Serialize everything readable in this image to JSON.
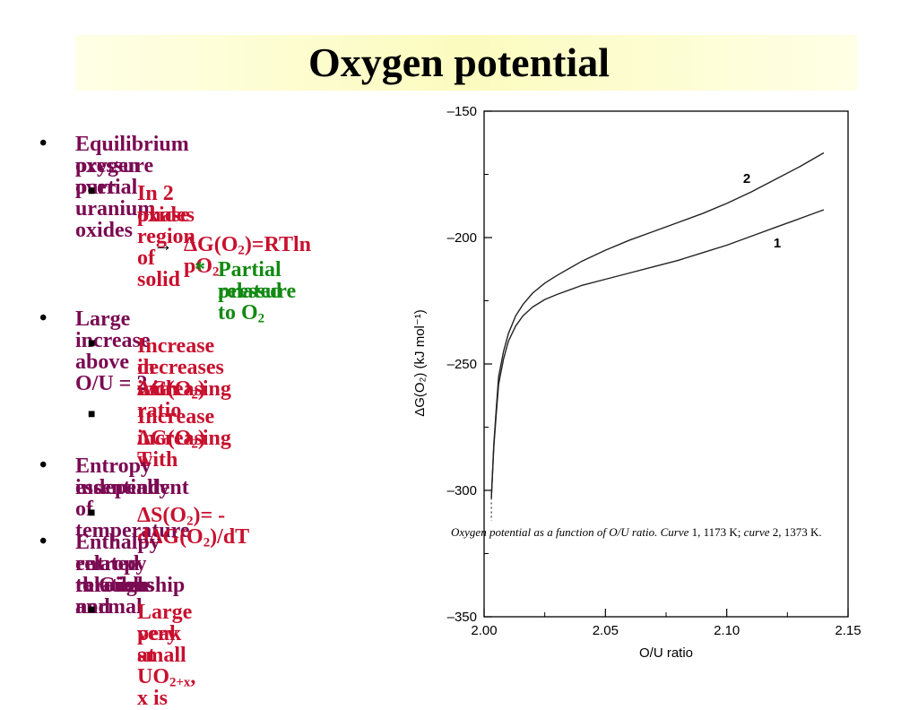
{
  "title": "Oxygen potential",
  "bullets": [
    {
      "level": 1,
      "lines": [
        "Equilibrium oxygen partial",
        "pressure over uranium oxides"
      ]
    },
    {
      "level": 2,
      "lines": [
        "In 2 phase region of solid",
        "oxides"
      ]
    },
    {
      "level": 3,
      "arrow": "→",
      "text": "ΔG(O",
      "sub": "2",
      "rest": ")=RTln pO",
      "sub2": "2"
    },
    {
      "level": 4,
      "marker": "*",
      "line1": "Partial pressure",
      "line2a": "related to O",
      "line2sub": "2"
    },
    {
      "level": 1,
      "lines": [
        "Large increase above O/U = 2"
      ]
    },
    {
      "level": 2,
      "l1a": "Increase in ΔG(O",
      "l1sub": "2",
      "l1b": ")",
      "l2": "decreases with",
      "l3": "increasing ratio"
    },
    {
      "level": 2,
      "l1a": "Increase ΔG(O",
      "l1sub": "2",
      "l1b": ") with",
      "l2": "increasing T"
    },
    {
      "level": 1,
      "lines": [
        "Entropy essentially",
        "independent of temperature"
      ]
    },
    {
      "level": 2,
      "a": "ΔS(O",
      "s1": "2",
      "b": ")= -dΔG(O",
      "s2": "2",
      "c": ")/dT"
    },
    {
      "level": 1,
      "lines": [
        "Enthalpy related to Gibbs and",
        "entropy through normal",
        "relationship"
      ]
    },
    {
      "level": 2,
      "a": "Large peak at UO",
      "s": "2+x",
      "b": ", x is",
      "l2": "very small"
    }
  ],
  "chart_data": {
    "type": "line",
    "xlabel": "O/U ratio",
    "ylabel": "ΔG(O₂) (kJ mol⁻¹)",
    "xlim": [
      2.0,
      2.15
    ],
    "ylim": [
      -350,
      -150
    ],
    "xticks": [
      "2.00",
      "2.05",
      "2.10",
      "2.15"
    ],
    "yticks": [
      "–150",
      "–200",
      "–250",
      "–300",
      "–350"
    ],
    "caption_parts": {
      "a": "Oxygen potential as a function of O/U ratio. Curve ",
      "b": "1, 1173 K; ",
      "c": "curve ",
      "d": "2, 1373 K."
    },
    "series": [
      {
        "name": "1",
        "x": [
          2.003,
          2.004,
          2.005,
          2.006,
          2.008,
          2.01,
          2.013,
          2.016,
          2.02,
          2.025,
          2.03,
          2.04,
          2.05,
          2.06,
          2.07,
          2.08,
          2.09,
          2.1,
          2.11,
          2.12,
          2.13,
          2.14
        ],
        "y": [
          -303,
          -283,
          -270,
          -258,
          -248,
          -241,
          -235,
          -231,
          -227.5,
          -224.5,
          -222.5,
          -219,
          -216.5,
          -214,
          -211.5,
          -209,
          -206,
          -203,
          -199.5,
          -196,
          -192.5,
          -189
        ]
      },
      {
        "name": "2",
        "x": [
          2.003,
          2.004,
          2.005,
          2.006,
          2.008,
          2.01,
          2.013,
          2.016,
          2.02,
          2.025,
          2.03,
          2.04,
          2.05,
          2.06,
          2.07,
          2.08,
          2.09,
          2.1,
          2.11,
          2.12,
          2.13,
          2.14
        ],
        "y": [
          -303,
          -282,
          -268,
          -255,
          -245,
          -238,
          -231,
          -226.5,
          -222,
          -218,
          -215,
          -209.5,
          -205,
          -201,
          -197.5,
          -194,
          -190.5,
          -186.5,
          -182,
          -177,
          -172,
          -166.5
        ]
      }
    ]
  }
}
